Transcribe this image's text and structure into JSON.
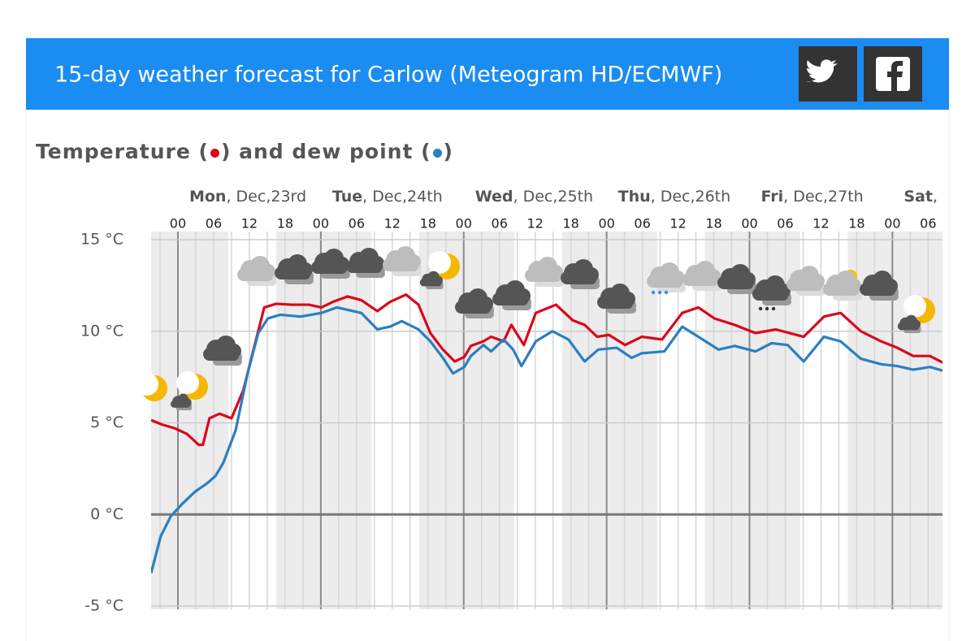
{
  "header": {
    "title": "15-day weather forecast for Carlow (Meteogram HD/ECMWF)"
  },
  "chart_data": {
    "type": "line",
    "title_parts": [
      "Temperature (",
      ") and dew point (",
      ")"
    ],
    "days": [
      {
        "name": "Mon",
        "date": ", Dec,23rd"
      },
      {
        "name": "Tue",
        "date": ", Dec,24th"
      },
      {
        "name": "Wed",
        "date": ", Dec,25th"
      },
      {
        "name": "Thu",
        "date": ", Dec,26th"
      },
      {
        "name": "Fri",
        "date": ", Dec,27th"
      },
      {
        "name": "Sat",
        "date": ","
      }
    ],
    "xlim": [
      -4.5,
      129.5
    ],
    "xticks": [
      {
        "value": 0,
        "label": "00"
      },
      {
        "value": 6,
        "label": "06"
      },
      {
        "value": 12,
        "label": "12"
      },
      {
        "value": 18,
        "label": "18"
      },
      {
        "value": 24,
        "label": "00"
      },
      {
        "value": 30,
        "label": "06"
      },
      {
        "value": 36,
        "label": "12"
      },
      {
        "value": 42,
        "label": "18"
      },
      {
        "value": 48,
        "label": "00"
      },
      {
        "value": 54,
        "label": "06"
      },
      {
        "value": 60,
        "label": "12"
      },
      {
        "value": 66,
        "label": "18"
      },
      {
        "value": 72,
        "label": "00"
      },
      {
        "value": 78,
        "label": "06"
      },
      {
        "value": 84,
        "label": "12"
      },
      {
        "value": 90,
        "label": "18"
      },
      {
        "value": 96,
        "label": "00"
      },
      {
        "value": 102,
        "label": "06"
      },
      {
        "value": 108,
        "label": "12"
      },
      {
        "value": 114,
        "label": "18"
      },
      {
        "value": 120,
        "label": "00"
      },
      {
        "value": 126,
        "label": "06"
      }
    ],
    "ylim": [
      -5,
      15
    ],
    "yticks": [
      {
        "value": -5,
        "label": "-5 °C"
      },
      {
        "value": 0,
        "label": "0 °C"
      },
      {
        "value": 5,
        "label": "5 °C"
      },
      {
        "value": 10,
        "label": "10 °C"
      },
      {
        "value": 15,
        "label": "15 °C"
      }
    ],
    "grid": true,
    "series": [
      {
        "color": "#d9081c",
        "x": [
          -4.5,
          -2.6,
          -0.5,
          1.5,
          3.5,
          4.2,
          5.3,
          7.0,
          9.0,
          11.0,
          12.7,
          14.5,
          16.5,
          19.2,
          22.0,
          24.1,
          26.0,
          28.5,
          30.8,
          33.5,
          35.6,
          38.3,
          40.4,
          42.4,
          44.5,
          46.5,
          48.1,
          49.2,
          51.3,
          52.6,
          54.7,
          56.0,
          58.1,
          60.1,
          63.5,
          66.3,
          68.3,
          70.4,
          72.4,
          75.1,
          77.9,
          81.3,
          84.7,
          87.4,
          90.1,
          93.5,
          97.0,
          100.4,
          105.1,
          108.5,
          111.3,
          114.7,
          118.1,
          120.8,
          123.5,
          126.3,
          129.0
        ],
        "values": [
          5.15,
          4.9,
          4.7,
          4.4,
          3.8,
          3.8,
          5.25,
          5.5,
          5.25,
          6.8,
          9.0,
          11.3,
          11.5,
          11.45,
          11.45,
          11.3,
          11.6,
          11.9,
          11.7,
          11.1,
          11.6,
          12.0,
          11.45,
          9.9,
          9.0,
          8.35,
          8.6,
          9.2,
          9.45,
          9.7,
          9.45,
          10.35,
          9.25,
          11.0,
          11.45,
          10.6,
          10.35,
          9.7,
          9.8,
          9.25,
          9.7,
          9.55,
          11.0,
          11.3,
          10.7,
          10.35,
          9.9,
          10.1,
          9.7,
          10.8,
          11.0,
          10.0,
          9.45,
          9.1,
          8.65,
          8.65,
          8.2
        ]
      },
      {
        "color": "#2a7fc1",
        "x": [
          -4.5,
          -2.9,
          -1.2,
          0.8,
          2.9,
          4.9,
          6.3,
          7.6,
          9.7,
          11.7,
          13.5,
          15.1,
          17.2,
          20.6,
          24.1,
          26.7,
          30.8,
          33.5,
          35.6,
          37.6,
          40.4,
          42.4,
          44.5,
          46.2,
          48.1,
          49.2,
          51.3,
          52.6,
          54.7,
          56.3,
          57.7,
          60.1,
          62.9,
          65.6,
          68.3,
          70.6,
          73.7,
          76.2,
          77.9,
          81.7,
          84.7,
          87.4,
          90.8,
          93.5,
          97.0,
          99.7,
          102.4,
          105.1,
          108.5,
          111.3,
          114.7,
          118.1,
          120.8,
          123.5,
          126.3,
          129.0
        ],
        "values": [
          -3.2,
          -1.2,
          -0.1,
          0.6,
          1.25,
          1.7,
          2.1,
          2.8,
          4.6,
          7.7,
          9.9,
          10.7,
          10.9,
          10.8,
          11.0,
          11.3,
          11.0,
          10.1,
          10.25,
          10.55,
          10.1,
          9.45,
          8.55,
          7.7,
          8.05,
          8.65,
          9.25,
          8.9,
          9.55,
          9.0,
          8.1,
          9.45,
          10.0,
          9.55,
          8.35,
          9.0,
          9.1,
          8.55,
          8.8,
          8.9,
          10.25,
          9.7,
          9.0,
          9.2,
          8.9,
          9.35,
          9.25,
          8.35,
          9.7,
          9.45,
          8.5,
          8.2,
          8.1,
          7.9,
          8.05,
          7.8
        ]
      }
    ]
  }
}
